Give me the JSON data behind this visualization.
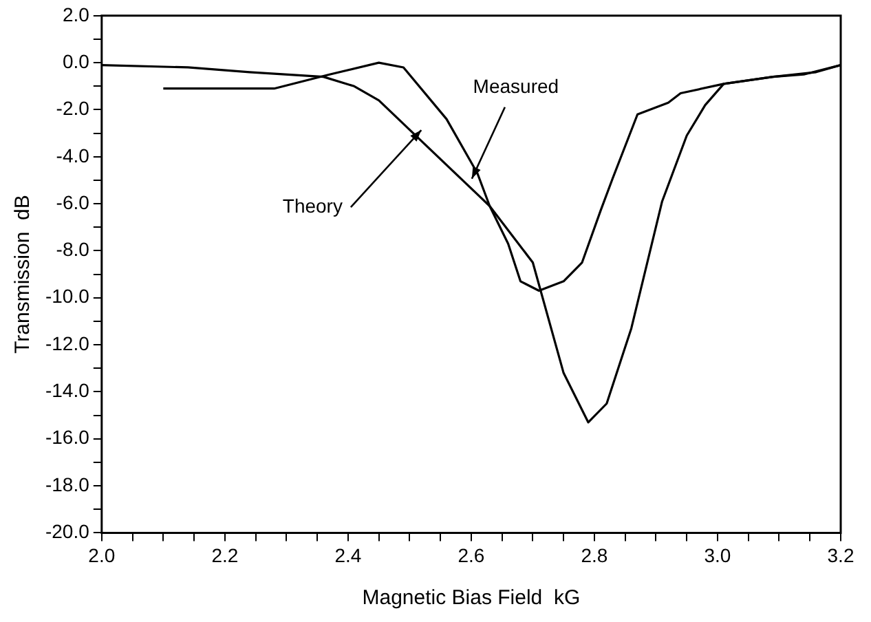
{
  "chart_data": {
    "type": "line",
    "xlabel": "Magnetic Bias Field  kG",
    "ylabel": "Transmission  dB",
    "marker": "none",
    "line_style": "solid",
    "xlim": [
      2.0,
      3.2
    ],
    "ylim": [
      -20.0,
      2.0
    ],
    "xticks": [
      {
        "value": 2.0,
        "label": "2.0"
      },
      {
        "value": 2.05,
        "label": null
      },
      {
        "value": 2.1,
        "label": null
      },
      {
        "value": 2.15,
        "label": null
      },
      {
        "value": 2.2,
        "label": "2.2"
      },
      {
        "value": 2.25,
        "label": null
      },
      {
        "value": 2.3,
        "label": null
      },
      {
        "value": 2.35,
        "label": null
      },
      {
        "value": 2.4,
        "label": "2.4"
      },
      {
        "value": 2.45,
        "label": null
      },
      {
        "value": 2.5,
        "label": null
      },
      {
        "value": 2.55,
        "label": null
      },
      {
        "value": 2.6,
        "label": "2.6"
      },
      {
        "value": 2.65,
        "label": null
      },
      {
        "value": 2.7,
        "label": null
      },
      {
        "value": 2.75,
        "label": null
      },
      {
        "value": 2.8,
        "label": "2.8"
      },
      {
        "value": 2.85,
        "label": null
      },
      {
        "value": 2.9,
        "label": null
      },
      {
        "value": 2.95,
        "label": null
      },
      {
        "value": 3.0,
        "label": "3.0"
      },
      {
        "value": 3.05,
        "label": null
      },
      {
        "value": 3.1,
        "label": null
      },
      {
        "value": 3.15,
        "label": null
      },
      {
        "value": 3.2,
        "label": "3.2"
      }
    ],
    "yticks": [
      {
        "value": 2,
        "label": "2.0"
      },
      {
        "value": 1,
        "label": null
      },
      {
        "value": 0,
        "label": "0.0"
      },
      {
        "value": -1,
        "label": null
      },
      {
        "value": -2,
        "label": "-2.0"
      },
      {
        "value": -3,
        "label": null
      },
      {
        "value": -4,
        "label": "-4.0"
      },
      {
        "value": -5,
        "label": null
      },
      {
        "value": -6,
        "label": "-6.0"
      },
      {
        "value": -7,
        "label": null
      },
      {
        "value": -8,
        "label": "-8.0"
      },
      {
        "value": -9,
        "label": null
      },
      {
        "value": -10,
        "label": "-10.0"
      },
      {
        "value": -11,
        "label": null
      },
      {
        "value": -12,
        "label": "-12.0"
      },
      {
        "value": -13,
        "label": null
      },
      {
        "value": -14,
        "label": "-14.0"
      },
      {
        "value": -15,
        "label": null
      },
      {
        "value": -16,
        "label": "-16.0"
      },
      {
        "value": -17,
        "label": null
      },
      {
        "value": -18,
        "label": "-18.0"
      },
      {
        "value": -19,
        "label": null
      },
      {
        "value": -20,
        "label": "-20.0"
      }
    ],
    "series": [
      {
        "name": "Measured",
        "color": "#000000",
        "x": [
          2.1,
          2.28,
          2.37,
          2.45,
          2.49,
          2.56,
          2.61,
          2.63,
          2.66,
          2.68,
          2.71,
          2.75,
          2.78,
          2.81,
          2.83,
          2.87,
          2.92,
          2.94,
          3.01,
          3.09,
          3.14,
          3.2
        ],
        "values": [
          -1.1,
          -1.1,
          -0.5,
          0.0,
          -0.2,
          -2.4,
          -4.7,
          -6.1,
          -7.7,
          -9.3,
          -9.7,
          -9.3,
          -8.5,
          -6.3,
          -4.9,
          -2.2,
          -1.7,
          -1.3,
          -0.9,
          -0.6,
          -0.5,
          -0.1
        ]
      },
      {
        "name": "Theory",
        "color": "#000000",
        "x": [
          2.0,
          2.14,
          2.24,
          2.36,
          2.41,
          2.45,
          2.51,
          2.61,
          2.63,
          2.7,
          2.75,
          2.79,
          2.82,
          2.86,
          2.91,
          2.95,
          2.98,
          3.01,
          3.09,
          3.16,
          3.2
        ],
        "values": [
          -0.1,
          -0.2,
          -0.4,
          -0.6,
          -1.0,
          -1.6,
          -3.1,
          -5.6,
          -6.1,
          -8.5,
          -13.2,
          -15.3,
          -14.5,
          -11.3,
          -5.9,
          -3.1,
          -1.8,
          -0.9,
          -0.6,
          -0.4,
          -0.1
        ]
      }
    ]
  }
}
